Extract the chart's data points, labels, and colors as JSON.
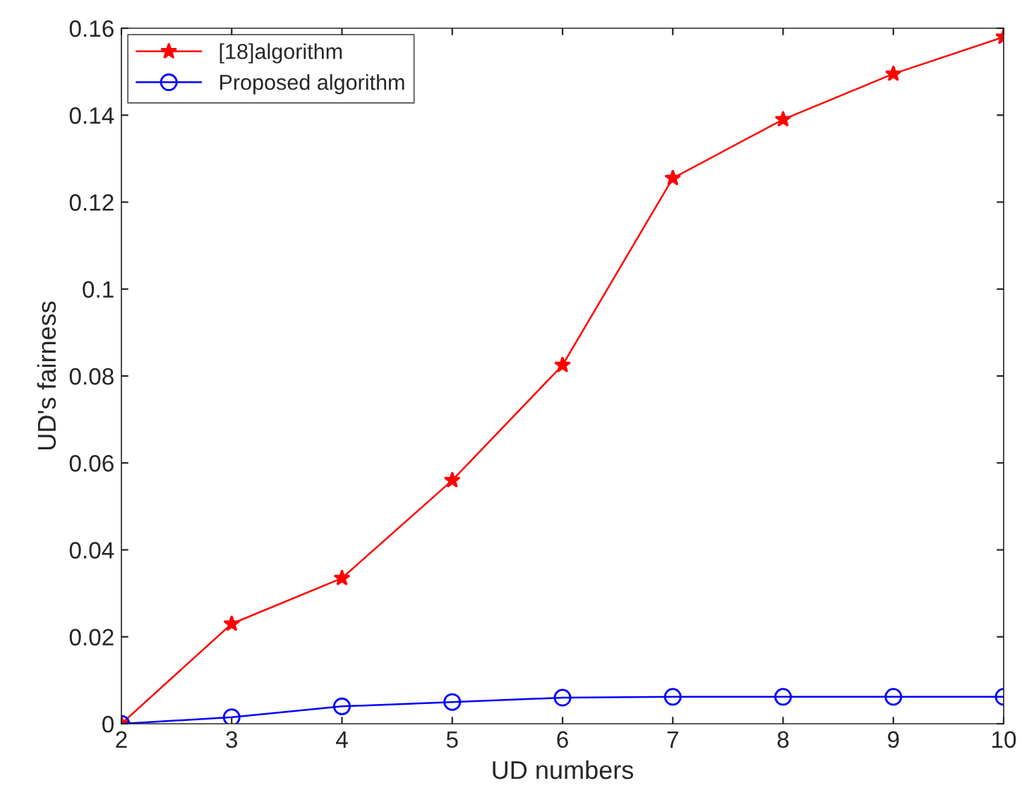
{
  "chart_data": {
    "type": "line",
    "xlabel": "UD numbers",
    "ylabel": "UD's fairness",
    "x": [
      2,
      3,
      4,
      5,
      6,
      7,
      8,
      9,
      10
    ],
    "series": [
      {
        "name": "[18]algorithm",
        "color": "#ff0000",
        "marker": "star",
        "values": [
          0,
          0.023,
          0.0335,
          0.056,
          0.0825,
          0.1255,
          0.139,
          0.1495,
          0.158
        ]
      },
      {
        "name": "Proposed algorithm",
        "color": "#0000ff",
        "marker": "circle",
        "values": [
          0,
          0.0015,
          0.004,
          0.005,
          0.006,
          0.0062,
          0.0062,
          0.0062,
          0.0062
        ]
      }
    ],
    "xlim": [
      2,
      10
    ],
    "xticks": [
      2,
      3,
      4,
      5,
      6,
      7,
      8,
      9,
      10
    ],
    "ylim": [
      0,
      0.16
    ],
    "yticks": [
      0,
      0.02,
      0.04,
      0.06,
      0.08,
      0.1,
      0.12,
      0.14,
      0.16
    ],
    "grid": false,
    "legend": "top left"
  }
}
